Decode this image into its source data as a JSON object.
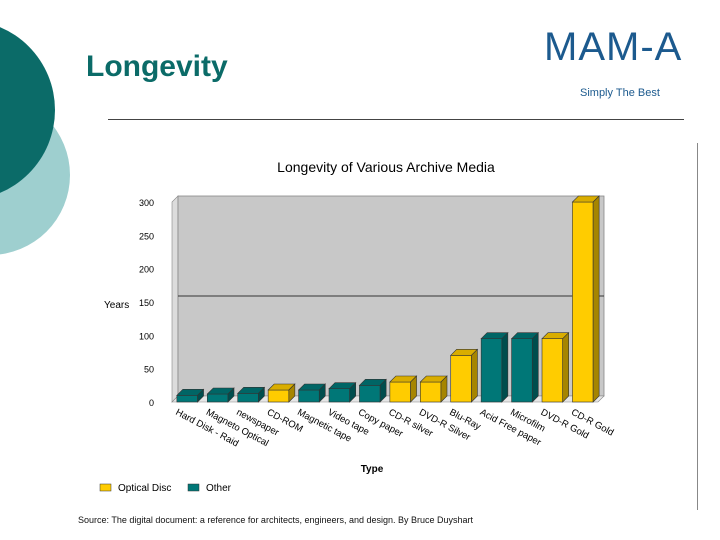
{
  "slide": {
    "title": "Longevity",
    "logo_text": "MAM-A",
    "logo_tagline": "Simply The Best",
    "source": "Source:  The digital document: a reference for architects, engineers, and design.  By Bruce Duyshart"
  },
  "colors": {
    "accent": "#0b6b68",
    "optical": "#ffcc00",
    "other": "#007777"
  },
  "chart_data": {
    "type": "bar",
    "title": "Longevity of Various Archive Media",
    "xlabel": "Type",
    "ylabel": "Years",
    "ylim": [
      0,
      300
    ],
    "yticks": [
      0,
      50,
      100,
      150,
      200,
      250,
      300
    ],
    "reference_line": 150,
    "legend_position": "bottom-left",
    "legend": [
      {
        "name": "Optical Disc",
        "color": "#ffcc00"
      },
      {
        "name": "Other",
        "color": "#007777"
      }
    ],
    "categories": [
      "Hard Disk - Raid",
      "Magneto Optical",
      "newspaper",
      "CD-ROM",
      "Magnetic tape",
      "Video tape",
      "Copy paper",
      "CD-R silver",
      "DVD-R Silver",
      "Blu-Ray",
      "Acid Free paper",
      "Microfilm",
      "DVD-R Gold",
      "CD-R Gold"
    ],
    "values": [
      10,
      12,
      13,
      18,
      18,
      20,
      25,
      30,
      30,
      70,
      95,
      95,
      95,
      300
    ],
    "kind": [
      "Other",
      "Other",
      "Other",
      "Optical Disc",
      "Other",
      "Other",
      "Other",
      "Optical Disc",
      "Optical Disc",
      "Optical Disc",
      "Other",
      "Other",
      "Optical Disc",
      "Optical Disc"
    ],
    "grid": false
  }
}
